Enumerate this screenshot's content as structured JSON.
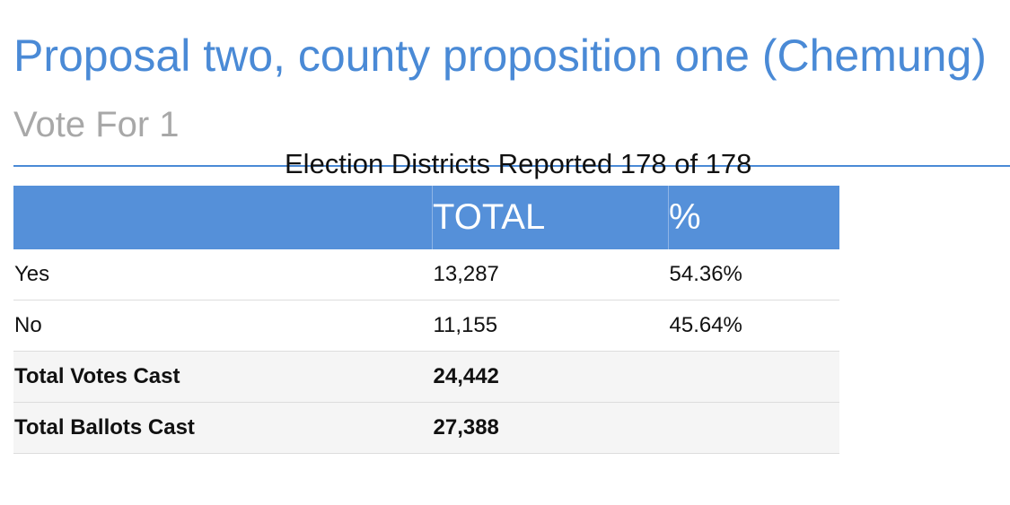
{
  "header": {
    "title": "Proposal two, county proposition one (Chemung)",
    "subtitle": "Vote For 1",
    "districts": "Election Districts Reported 178 of 178"
  },
  "table": {
    "columns": [
      "TOTAL",
      "%"
    ],
    "rows": [
      [
        "Yes",
        "13,287",
        "54.36%"
      ],
      [
        "No",
        "11,155",
        "45.64%"
      ],
      [
        "Total Votes Cast",
        "24,442"
      ],
      [
        "Total Ballots Cast",
        "27,388"
      ]
    ]
  }
}
